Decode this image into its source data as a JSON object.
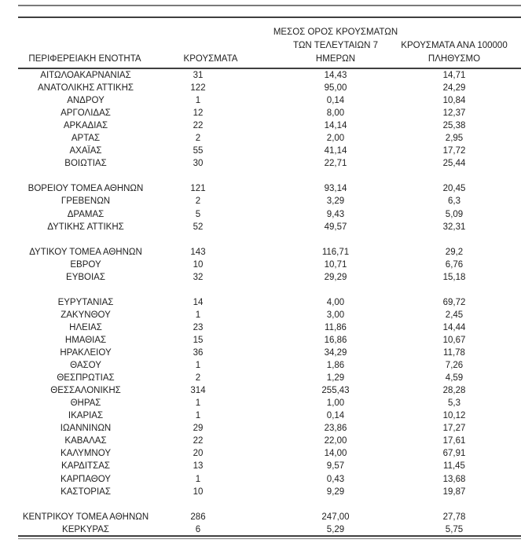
{
  "colors": {
    "background": "#ffffff",
    "text": "#1f1f1f",
    "rule_dark": "#3f3f3f",
    "rule_gray": "#7a7a7a"
  },
  "table": {
    "columns": [
      {
        "id": "region",
        "label": "ΠΕΡΙΦΕΡΕΙΑΚΗ ΕΝΟΤΗΤΑ"
      },
      {
        "id": "cases",
        "label": "ΚΡΟΥΣΜΑΤΑ"
      },
      {
        "id": "avg7",
        "label_lines": [
          "ΜΕΣΟΣ ΟΡΟΣ ΚΡΟΥΣΜΑΤΩΝ",
          "ΤΩΝ ΤΕΛΕΥΤΑΙΩΝ 7",
          "ΗΜΕΡΩΝ"
        ]
      },
      {
        "id": "per100k",
        "label_lines": [
          "ΚΡΟΥΣΜΑΤΑ ΑΝΑ 100000",
          "ΠΛΗΘΥΣΜΟ"
        ]
      }
    ],
    "sections": [
      {
        "rows": [
          [
            "ΑΙΤΩΛΟΑΚΑΡΝΑΝΙΑΣ",
            "31",
            "14,43",
            "14,71"
          ],
          [
            "ΑΝΑΤΟΛΙΚΗΣ ΑΤΤΙΚΗΣ",
            "122",
            "95,00",
            "24,29"
          ],
          [
            "ΑΝΔΡΟΥ",
            "1",
            "0,14",
            "10,84"
          ],
          [
            "ΑΡΓΟΛΙΔΑΣ",
            "12",
            "8,00",
            "12,37"
          ],
          [
            "ΑΡΚΑΔΙΑΣ",
            "22",
            "14,14",
            "25,38"
          ],
          [
            "ΑΡΤΑΣ",
            "2",
            "2,00",
            "2,95"
          ],
          [
            "ΑΧΑΪΑΣ",
            "55",
            "41,14",
            "17,72"
          ],
          [
            "ΒΟΙΩΤΙΑΣ",
            "30",
            "22,71",
            "25,44"
          ]
        ]
      },
      {
        "rows": [
          [
            "ΒΟΡΕΙΟΥ ΤΟΜΕΑ ΑΘΗΝΩΝ",
            "121",
            "93,14",
            "20,45"
          ],
          [
            "ΓΡΕΒΕΝΩΝ",
            "2",
            "3,29",
            "6,3"
          ],
          [
            "ΔΡΑΜΑΣ",
            "5",
            "9,43",
            "5,09"
          ],
          [
            "ΔΥΤΙΚΗΣ ΑΤΤΙΚΗΣ",
            "52",
            "49,57",
            "32,31"
          ]
        ]
      },
      {
        "rows": [
          [
            "ΔΥΤΙΚΟΥ ΤΟΜΕΑ ΑΘΗΝΩΝ",
            "143",
            "116,71",
            "29,2"
          ],
          [
            "ΕΒΡΟΥ",
            "10",
            "10,71",
            "6,76"
          ],
          [
            "ΕΥΒΟΙΑΣ",
            "32",
            "29,29",
            "15,18"
          ]
        ]
      },
      {
        "rows": [
          [
            "ΕΥΡΥΤΑΝΙΑΣ",
            "14",
            "4,00",
            "69,72"
          ],
          [
            "ΖΑΚΥΝΘΟΥ",
            "1",
            "3,00",
            "2,45"
          ],
          [
            "ΗΛΕΙΑΣ",
            "23",
            "11,86",
            "14,44"
          ],
          [
            "ΗΜΑΘΙΑΣ",
            "15",
            "16,86",
            "10,67"
          ],
          [
            "ΗΡΑΚΛΕΙΟΥ",
            "36",
            "34,29",
            "11,78"
          ],
          [
            "ΘΑΣΟΥ",
            "1",
            "1,86",
            "7,26"
          ],
          [
            "ΘΕΣΠΡΩΤΙΑΣ",
            "2",
            "1,29",
            "4,59"
          ],
          [
            "ΘΕΣΣΑΛΟΝΙΚΗΣ",
            "314",
            "255,43",
            "28,28"
          ],
          [
            "ΘΗΡΑΣ",
            "1",
            "1,00",
            "5,3"
          ],
          [
            "ΙΚΑΡΙΑΣ",
            "1",
            "0,14",
            "10,12"
          ],
          [
            "ΙΩΑΝΝΙΝΩΝ",
            "29",
            "23,86",
            "17,27"
          ],
          [
            "ΚΑΒΑΛΑΣ",
            "22",
            "22,00",
            "17,61"
          ],
          [
            "ΚΑΛΥΜΝΟΥ",
            "20",
            "14,00",
            "67,91"
          ],
          [
            "ΚΑΡΔΙΤΣΑΣ",
            "13",
            "9,57",
            "11,45"
          ],
          [
            "ΚΑΡΠΑΘΟΥ",
            "1",
            "0,43",
            "13,68"
          ],
          [
            "ΚΑΣΤΟΡΙΑΣ",
            "10",
            "9,29",
            "19,87"
          ]
        ]
      },
      {
        "rows": [
          [
            "ΚΕΝΤΡΙΚΟΥ ΤΟΜΕΑ ΑΘΗΝΩΝ",
            "286",
            "247,00",
            "27,78"
          ],
          [
            "ΚΕΡΚΥΡΑΣ",
            "6",
            "5,29",
            "5,75"
          ]
        ]
      }
    ]
  }
}
